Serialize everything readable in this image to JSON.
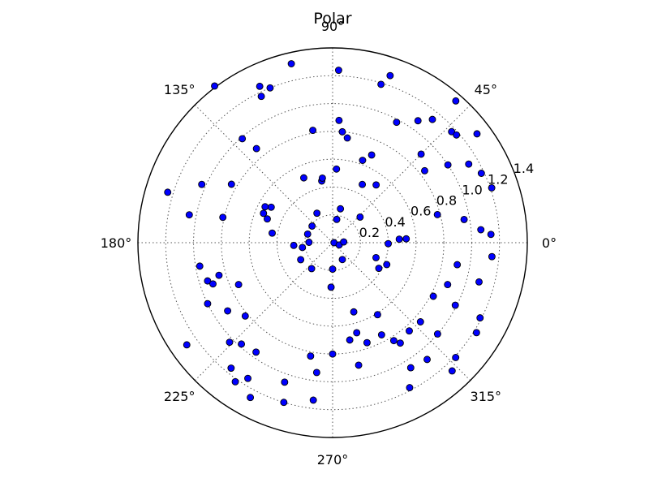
{
  "chart_data": {
    "type": "scatter",
    "projection": "polar",
    "title": "Polar",
    "rlim": [
      0,
      1.4
    ],
    "r_ticks": [
      "0.2",
      "0.4",
      "0.6",
      "0.8",
      "1.0",
      "1.2",
      "1.4"
    ],
    "theta_ticks": [
      "0°",
      "45°",
      "90°",
      "135°",
      "180°",
      "225°",
      "270°",
      "315°"
    ],
    "grid": true,
    "marker_color": "#0000ff",
    "points": [
      {
        "theta": 0.0,
        "r": 0.01
      },
      {
        "theta": 341.0,
        "r": 0.05
      },
      {
        "theta": 4.0,
        "r": 0.08
      },
      {
        "theta": 77.0,
        "r": 0.25
      },
      {
        "theta": 80.0,
        "r": 0.17
      },
      {
        "theta": 43.0,
        "r": 0.27
      },
      {
        "theta": 118.0,
        "r": 0.24
      },
      {
        "theta": 141.0,
        "r": 0.19
      },
      {
        "theta": 161.0,
        "r": 0.19
      },
      {
        "theta": 179.0,
        "r": 0.17
      },
      {
        "theta": 184.0,
        "r": 0.28
      },
      {
        "theta": 189.0,
        "r": 0.22
      },
      {
        "theta": 208.0,
        "r": 0.26
      },
      {
        "theta": 231.0,
        "r": 0.24
      },
      {
        "theta": 270.0,
        "r": 0.19
      },
      {
        "theta": 300.0,
        "r": 0.14
      },
      {
        "theta": 87.0,
        "r": 0.53
      },
      {
        "theta": 100.0,
        "r": 0.45
      },
      {
        "theta": 99.0,
        "r": 0.47
      },
      {
        "theta": 114.0,
        "r": 0.51
      },
      {
        "theta": 63.0,
        "r": 0.47
      },
      {
        "theta": 53.0,
        "r": 0.52
      },
      {
        "theta": 150.0,
        "r": 0.51
      },
      {
        "theta": 152.0,
        "r": 0.55
      },
      {
        "theta": 160.0,
        "r": 0.5
      },
      {
        "theta": 157.0,
        "r": 0.54
      },
      {
        "theta": 171.0,
        "r": 0.44
      },
      {
        "theta": 3.0,
        "r": 0.53
      },
      {
        "theta": 359.0,
        "r": 0.4
      },
      {
        "theta": 341.0,
        "r": 0.33
      },
      {
        "theta": 331.0,
        "r": 0.38
      },
      {
        "theta": 338.0,
        "r": 0.42
      },
      {
        "theta": 268.0,
        "r": 0.32
      },
      {
        "theta": 82.0,
        "r": 0.76
      },
      {
        "theta": 87.0,
        "r": 0.88
      },
      {
        "theta": 85.0,
        "r": 0.8
      },
      {
        "theta": 66.0,
        "r": 0.69
      },
      {
        "theta": 70.0,
        "r": 0.63
      },
      {
        "theta": 62.0,
        "r": 0.98
      },
      {
        "theta": 55.0,
        "r": 1.07
      },
      {
        "theta": 45.0,
        "r": 0.9
      },
      {
        "theta": 38.0,
        "r": 0.84
      },
      {
        "theta": 34.0,
        "r": 1.0
      },
      {
        "theta": 100.0,
        "r": 0.82
      },
      {
        "theta": 129.0,
        "r": 0.87
      },
      {
        "theta": 131.0,
        "r": 0.99
      },
      {
        "theta": 150.0,
        "r": 0.84
      },
      {
        "theta": 156.0,
        "r": 1.03
      },
      {
        "theta": 167.0,
        "r": 0.81
      },
      {
        "theta": 169.0,
        "r": 1.05
      },
      {
        "theta": 163.0,
        "r": 1.24
      },
      {
        "theta": 190.0,
        "r": 0.97
      },
      {
        "theta": 196.0,
        "r": 0.85
      },
      {
        "theta": 197.0,
        "r": 0.94
      },
      {
        "theta": 199.0,
        "r": 0.91
      },
      {
        "theta": 204.0,
        "r": 0.74
      },
      {
        "theta": 206.0,
        "r": 1.0
      },
      {
        "theta": 213.0,
        "r": 0.9
      },
      {
        "theta": 220.0,
        "r": 0.82
      },
      {
        "theta": 224.0,
        "r": 1.03
      },
      {
        "theta": 228.0,
        "r": 0.98
      },
      {
        "theta": 231.0,
        "r": 1.16
      },
      {
        "theta": 235.0,
        "r": 1.22
      },
      {
        "theta": 235.0,
        "r": 0.96
      },
      {
        "theta": 251.0,
        "r": 1.06
      },
      {
        "theta": 263.0,
        "r": 0.94
      },
      {
        "theta": 259.0,
        "r": 0.83
      },
      {
        "theta": 270.0,
        "r": 0.8
      },
      {
        "theta": 280.0,
        "r": 0.71
      },
      {
        "theta": 282.0,
        "r": 0.9
      },
      {
        "theta": 289.0,
        "r": 0.76
      },
      {
        "theta": 285.0,
        "r": 0.67
      },
      {
        "theta": 302.0,
        "r": 0.61
      },
      {
        "theta": 298.0,
        "r": 0.75
      },
      {
        "theta": 302.0,
        "r": 1.06
      },
      {
        "theta": 302.0,
        "r": 0.83
      },
      {
        "theta": 318.0,
        "r": 0.85
      },
      {
        "theta": 311.0,
        "r": 0.84
      },
      {
        "theta": 319.0,
        "r": 1.0
      },
      {
        "theta": 333.0,
        "r": 0.99
      },
      {
        "theta": 340.0,
        "r": 0.88
      },
      {
        "theta": 350.0,
        "r": 0.91
      },
      {
        "theta": 345.0,
        "r": 1.09
      },
      {
        "theta": 333.0,
        "r": 1.19
      },
      {
        "theta": 10.0,
        "r": 0.96
      },
      {
        "theta": 5.0,
        "r": 1.07
      },
      {
        "theta": 3.0,
        "r": 1.14
      },
      {
        "theta": 19.0,
        "r": 1.21
      },
      {
        "theta": 73.0,
        "r": 1.19
      },
      {
        "theta": 88.0,
        "r": 1.24
      },
      {
        "theta": 103.0,
        "r": 1.32
      },
      {
        "theta": 116.0,
        "r": 1.17
      },
      {
        "theta": 112.0,
        "r": 1.2
      },
      {
        "theta": 115.0,
        "r": 1.24
      },
      {
        "theta": 127.0,
        "r": 1.41
      },
      {
        "theta": 51.0,
        "r": 1.14
      },
      {
        "theta": 49.0,
        "r": 1.35
      },
      {
        "theta": 71.0,
        "r": 1.27
      },
      {
        "theta": 43.0,
        "r": 1.17
      },
      {
        "theta": 41.0,
        "r": 1.18
      },
      {
        "theta": 37.0,
        "r": 1.3
      },
      {
        "theta": 30.0,
        "r": 1.13
      },
      {
        "theta": 25.0,
        "r": 1.18
      },
      {
        "theta": 215.0,
        "r": 1.28
      },
      {
        "theta": 238.0,
        "r": 1.15
      },
      {
        "theta": 242.0,
        "r": 1.26
      },
      {
        "theta": 253.0,
        "r": 1.2
      },
      {
        "theta": 263.0,
        "r": 1.14
      },
      {
        "theta": 298.0,
        "r": 1.18
      },
      {
        "theta": 313.0,
        "r": 1.26
      },
      {
        "theta": 317.0,
        "r": 1.21
      },
      {
        "theta": 328.0,
        "r": 1.22
      },
      {
        "theta": 309.0,
        "r": 1.08
      },
      {
        "theta": 304.0,
        "r": 0.87
      },
      {
        "theta": 355.0,
        "r": 1.15
      },
      {
        "theta": 332.0,
        "r": 0.82
      },
      {
        "theta": 287.0,
        "r": 0.52
      },
      {
        "theta": 3.0,
        "r": 0.48
      },
      {
        "theta": 15.0,
        "r": 0.78
      }
    ]
  }
}
